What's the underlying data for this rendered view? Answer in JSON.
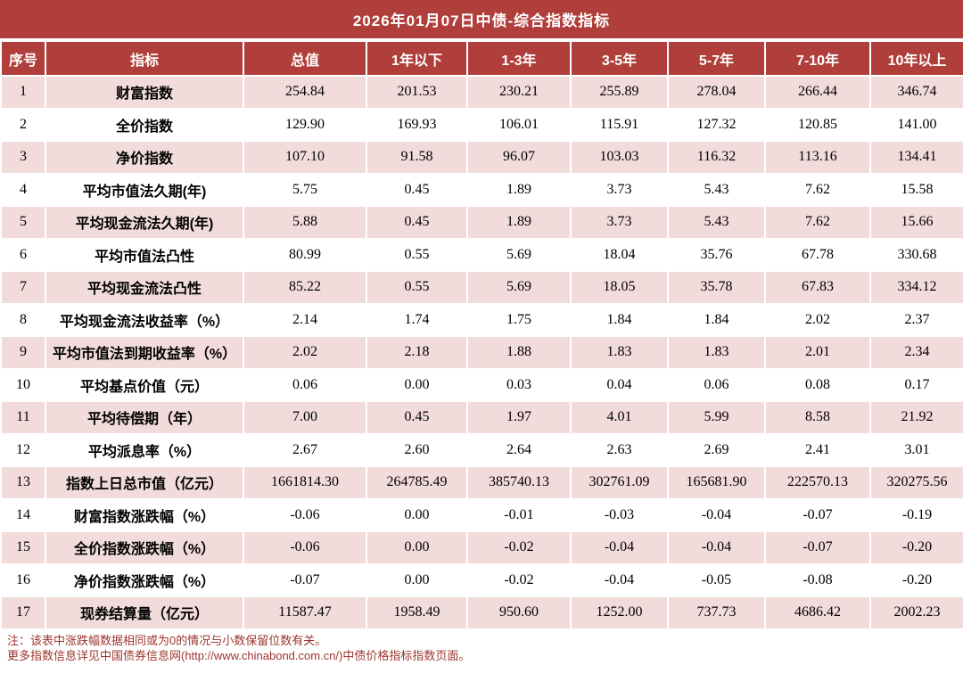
{
  "title": "2026年01月07日中债-综合指数指标",
  "colors": {
    "header_bg": "#b03f3c",
    "row_pink": "#f2dcdb",
    "negative": "#fe0000",
    "note_text": "#9c352c"
  },
  "table": {
    "columns": [
      "序号",
      "指标",
      "总值",
      "1年以下",
      "1-3年",
      "3-5年",
      "5-7年",
      "7-10年",
      "10年以上"
    ],
    "rows": [
      {
        "no": "1",
        "label": "财富指数",
        "values": [
          "254.84",
          "201.53",
          "230.21",
          "255.89",
          "278.04",
          "266.44",
          "346.74"
        ]
      },
      {
        "no": "2",
        "label": "全价指数",
        "values": [
          "129.90",
          "169.93",
          "106.01",
          "115.91",
          "127.32",
          "120.85",
          "141.00"
        ]
      },
      {
        "no": "3",
        "label": "净价指数",
        "values": [
          "107.10",
          "91.58",
          "96.07",
          "103.03",
          "116.32",
          "113.16",
          "134.41"
        ]
      },
      {
        "no": "4",
        "label": "平均市值法久期(年)",
        "values": [
          "5.75",
          "0.45",
          "1.89",
          "3.73",
          "5.43",
          "7.62",
          "15.58"
        ]
      },
      {
        "no": "5",
        "label": "平均现金流法久期(年)",
        "values": [
          "5.88",
          "0.45",
          "1.89",
          "3.73",
          "5.43",
          "7.62",
          "15.66"
        ]
      },
      {
        "no": "6",
        "label": "平均市值法凸性",
        "values": [
          "80.99",
          "0.55",
          "5.69",
          "18.04",
          "35.76",
          "67.78",
          "330.68"
        ]
      },
      {
        "no": "7",
        "label": "平均现金流法凸性",
        "values": [
          "85.22",
          "0.55",
          "5.69",
          "18.05",
          "35.78",
          "67.83",
          "334.12"
        ]
      },
      {
        "no": "8",
        "label": "平均现金流法收益率（%）",
        "values": [
          "2.14",
          "1.74",
          "1.75",
          "1.84",
          "1.84",
          "2.02",
          "2.37"
        ]
      },
      {
        "no": "9",
        "label": "平均市值法到期收益率（%）",
        "values": [
          "2.02",
          "2.18",
          "1.88",
          "1.83",
          "1.83",
          "2.01",
          "2.34"
        ]
      },
      {
        "no": "10",
        "label": "平均基点价值（元）",
        "values": [
          "0.06",
          "0.00",
          "0.03",
          "0.04",
          "0.06",
          "0.08",
          "0.17"
        ]
      },
      {
        "no": "11",
        "label": "平均待偿期（年）",
        "values": [
          "7.00",
          "0.45",
          "1.97",
          "4.01",
          "5.99",
          "8.58",
          "21.92"
        ]
      },
      {
        "no": "12",
        "label": "平均派息率（%）",
        "values": [
          "2.67",
          "2.60",
          "2.64",
          "2.63",
          "2.69",
          "2.41",
          "3.01"
        ]
      },
      {
        "no": "13",
        "label": "指数上日总市值（亿元）",
        "values": [
          "1661814.30",
          "264785.49",
          "385740.13",
          "302761.09",
          "165681.90",
          "222570.13",
          "320275.56"
        ]
      },
      {
        "no": "14",
        "label": "财富指数涨跌幅（%）",
        "values": [
          "-0.06",
          "0.00",
          "-0.01",
          "-0.03",
          "-0.04",
          "-0.07",
          "-0.19"
        ]
      },
      {
        "no": "15",
        "label": "全价指数涨跌幅（%）",
        "values": [
          "-0.06",
          "0.00",
          "-0.02",
          "-0.04",
          "-0.04",
          "-0.07",
          "-0.20"
        ]
      },
      {
        "no": "16",
        "label": "净价指数涨跌幅（%）",
        "values": [
          "-0.07",
          "0.00",
          "-0.02",
          "-0.04",
          "-0.05",
          "-0.08",
          "-0.20"
        ]
      },
      {
        "no": "17",
        "label": "现券结算量（亿元）",
        "values": [
          "11587.47",
          "1958.49",
          "950.60",
          "1252.00",
          "737.73",
          "4686.42",
          "2002.23"
        ]
      }
    ]
  },
  "notes": [
    "注：该表中涨跌幅数据相同或为0的情况与小数保留位数有关。",
    "更多指数信息详见中国债券信息网(http://www.chinabond.com.cn/)中债价格指标指数页面。"
  ]
}
